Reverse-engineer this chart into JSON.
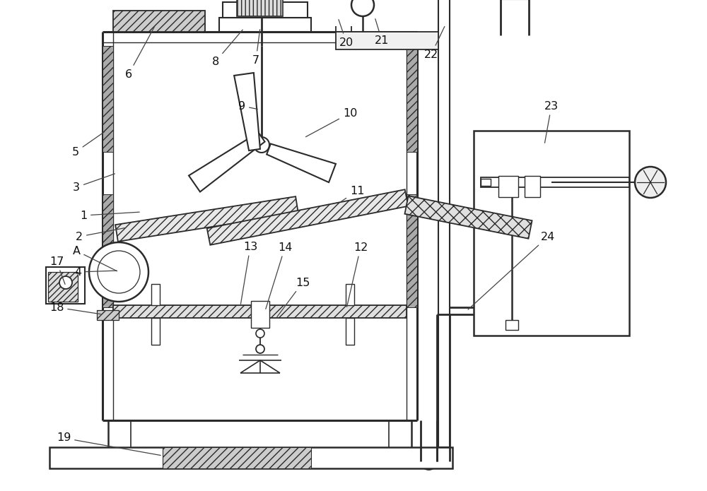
{
  "bg_color": "#ffffff",
  "lc": "#2a2a2a",
  "fig_w": 10.0,
  "fig_h": 6.95
}
